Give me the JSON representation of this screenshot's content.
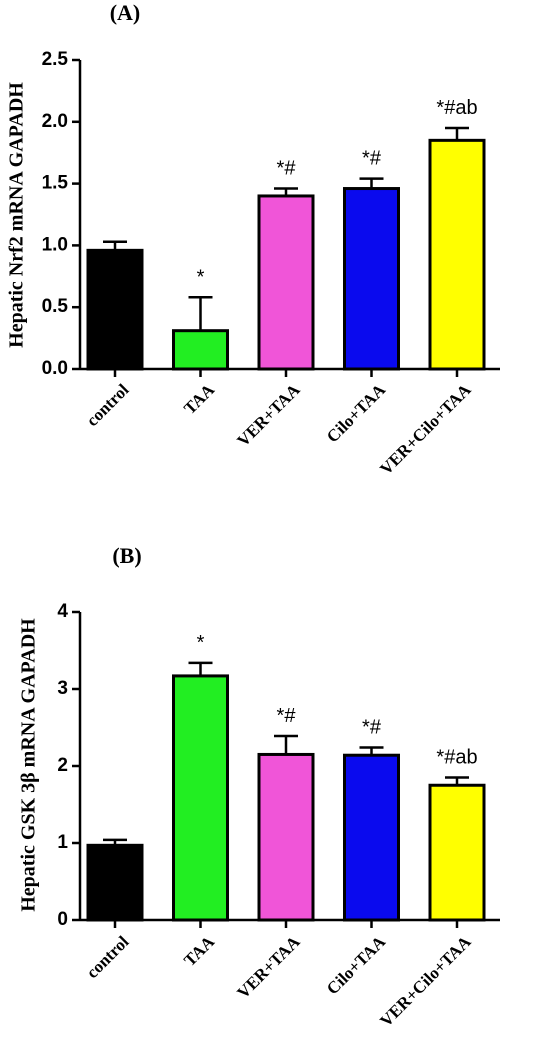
{
  "chart_data": [
    {
      "type": "bar",
      "panel_label": "(A)",
      "ylabel": "Hepatic Nrf2 mRNA GAPADH",
      "ylim": [
        0,
        2.5
      ],
      "yticks": [
        0,
        0.5,
        1.0,
        1.5,
        2.0,
        2.5
      ],
      "ytick_labels": [
        "0.0",
        "0.5",
        "1.0",
        "1.5",
        "2.0",
        "2.5"
      ],
      "categories": [
        "control",
        "TAA",
        "VER+TAA",
        "Cilo+TAA",
        "VER+Cilo+TAA"
      ],
      "values": [
        0.96,
        0.31,
        1.4,
        1.46,
        1.85
      ],
      "errors": [
        0.07,
        0.27,
        0.06,
        0.08,
        0.1
      ],
      "colors": [
        "#000000",
        "#22ee22",
        "#f055d8",
        "#0a0aee",
        "#ffff00"
      ],
      "annotations": [
        "",
        "*",
        "*#",
        "*#",
        "*#ab"
      ]
    },
    {
      "type": "bar",
      "panel_label": "(B)",
      "ylabel": "Hepatic GSK 3β  mRNA GAPADH",
      "ylim": [
        0,
        4
      ],
      "yticks": [
        0,
        1,
        2,
        3,
        4
      ],
      "ytick_labels": [
        "0",
        "1",
        "2",
        "3",
        "4"
      ],
      "categories": [
        "control",
        "TAA",
        "VER+TAA",
        "Cilo+TAA",
        "VER+Cilo+TAA"
      ],
      "values": [
        0.97,
        3.17,
        2.15,
        2.14,
        1.75
      ],
      "errors": [
        0.07,
        0.17,
        0.24,
        0.1,
        0.1
      ],
      "colors": [
        "#000000",
        "#22ee22",
        "#f055d8",
        "#0a0aee",
        "#ffff00"
      ],
      "annotations": [
        "",
        "*",
        "*#",
        "*#",
        "*#ab"
      ]
    }
  ]
}
